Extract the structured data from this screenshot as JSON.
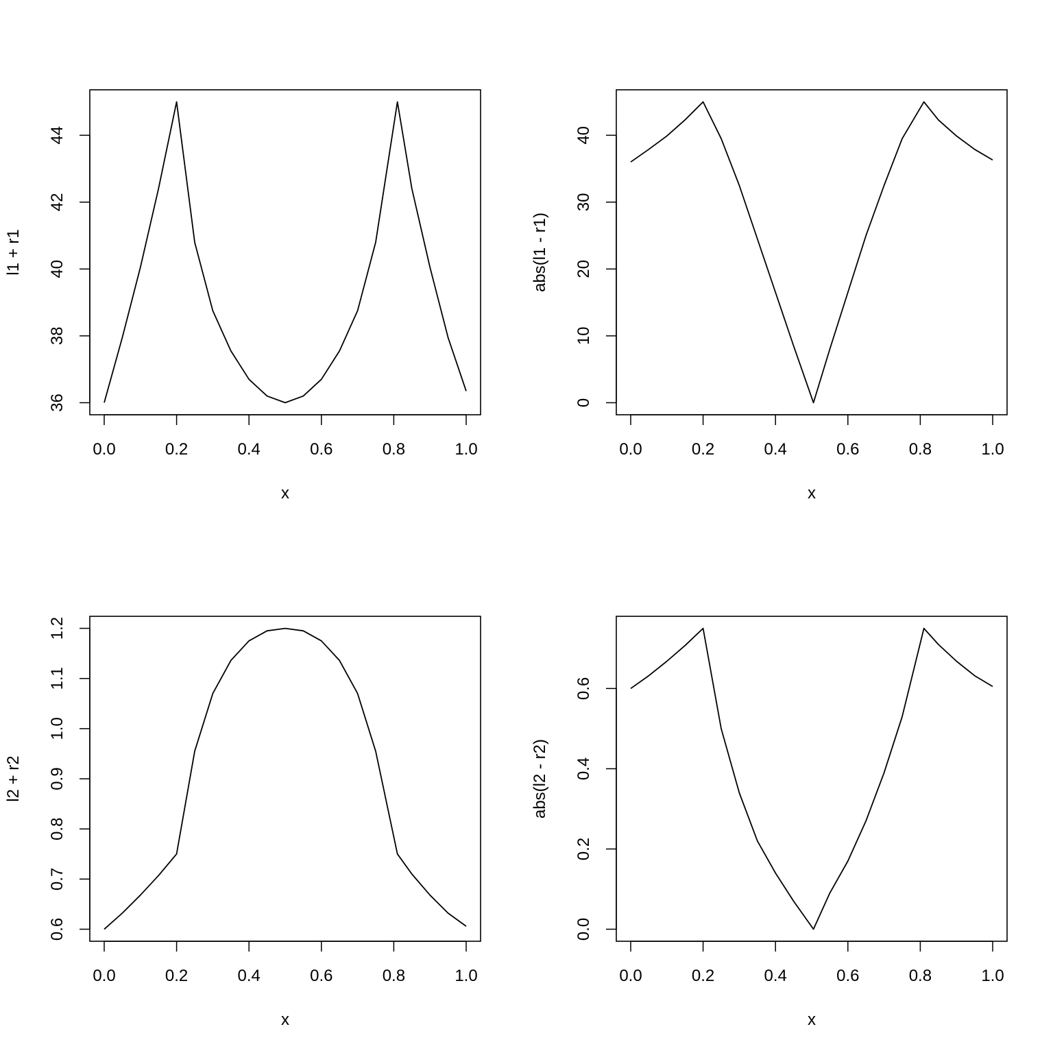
{
  "chart_data": [
    {
      "type": "line",
      "title": "",
      "xlabel": "x",
      "ylabel": "l1 + r1",
      "xlim": [
        0,
        1
      ],
      "ylim": [
        35.64,
        45.36
      ],
      "x_ticks": [
        0.0,
        0.2,
        0.4,
        0.6,
        0.8,
        1.0
      ],
      "x_tick_labels": [
        "0.0",
        "0.2",
        "0.4",
        "0.6",
        "0.8",
        "1.0"
      ],
      "y_ticks": [
        36,
        38,
        40,
        42,
        44
      ],
      "y_tick_labels": [
        "36",
        "38",
        "40",
        "42",
        "44"
      ],
      "grid": false,
      "series": [
        {
          "x": [
            0.0,
            0.05,
            0.1,
            0.15,
            0.2,
            0.25,
            0.3,
            0.35,
            0.4,
            0.45,
            0.5,
            0.55,
            0.6,
            0.65,
            0.7,
            0.75,
            0.81,
            0.85,
            0.9,
            0.95,
            1.0
          ],
          "y": [
            36.0,
            37.95,
            40.05,
            42.4,
            45.0,
            40.8,
            38.75,
            37.55,
            36.7,
            36.2,
            36.0,
            36.2,
            36.7,
            37.55,
            38.75,
            40.8,
            45.0,
            42.4,
            40.05,
            37.95,
            36.35
          ]
        }
      ]
    },
    {
      "type": "line",
      "title": "",
      "xlabel": "x",
      "ylabel": "abs(l1 - r1)",
      "xlim": [
        0,
        1
      ],
      "ylim": [
        -1.8,
        46.8
      ],
      "x_ticks": [
        0.0,
        0.2,
        0.4,
        0.6,
        0.8,
        1.0
      ],
      "x_tick_labels": [
        "0.0",
        "0.2",
        "0.4",
        "0.6",
        "0.8",
        "1.0"
      ],
      "y_ticks": [
        0,
        10,
        20,
        30,
        40
      ],
      "y_tick_labels": [
        "0",
        "10",
        "20",
        "30",
        "40"
      ],
      "grid": false,
      "series": [
        {
          "x": [
            0.0,
            0.05,
            0.1,
            0.15,
            0.2,
            0.25,
            0.3,
            0.35,
            0.4,
            0.45,
            0.505,
            0.55,
            0.6,
            0.65,
            0.7,
            0.75,
            0.81,
            0.85,
            0.9,
            0.95,
            1.0
          ],
          "y": [
            36.0,
            37.9,
            39.9,
            42.3,
            45.0,
            39.5,
            32.5,
            24.5,
            16.5,
            8.5,
            0.0,
            8.0,
            16.5,
            25.0,
            32.5,
            39.5,
            45.0,
            42.3,
            39.9,
            37.9,
            36.3
          ]
        }
      ]
    },
    {
      "type": "line",
      "title": "",
      "xlabel": "x",
      "ylabel": "l2 + r2",
      "xlim": [
        0,
        1
      ],
      "ylim": [
        0.576,
        1.224
      ],
      "x_ticks": [
        0.0,
        0.2,
        0.4,
        0.6,
        0.8,
        1.0
      ],
      "x_tick_labels": [
        "0.0",
        "0.2",
        "0.4",
        "0.6",
        "0.8",
        "1.0"
      ],
      "y_ticks": [
        0.6,
        0.7,
        0.8,
        0.9,
        1.0,
        1.1,
        1.2
      ],
      "y_tick_labels": [
        "0.6",
        "0.7",
        "0.8",
        "0.9",
        "1.0",
        "1.1",
        "1.2"
      ],
      "grid": false,
      "series": [
        {
          "x": [
            0.0,
            0.05,
            0.1,
            0.15,
            0.2,
            0.25,
            0.3,
            0.35,
            0.4,
            0.45,
            0.5,
            0.55,
            0.6,
            0.65,
            0.7,
            0.75,
            0.81,
            0.85,
            0.9,
            0.95,
            1.0
          ],
          "y": [
            0.6,
            0.632,
            0.668,
            0.707,
            0.75,
            0.955,
            1.07,
            1.136,
            1.175,
            1.195,
            1.2,
            1.195,
            1.175,
            1.136,
            1.07,
            0.955,
            0.75,
            0.71,
            0.668,
            0.632,
            0.606
          ]
        }
      ]
    },
    {
      "type": "line",
      "title": "",
      "xlabel": "x",
      "ylabel": "abs(l2 - r2)",
      "xlim": [
        0,
        1
      ],
      "ylim": [
        -0.03,
        0.78
      ],
      "x_ticks": [
        0.0,
        0.2,
        0.4,
        0.6,
        0.8,
        1.0
      ],
      "x_tick_labels": [
        "0.0",
        "0.2",
        "0.4",
        "0.6",
        "0.8",
        "1.0"
      ],
      "y_ticks": [
        0.0,
        0.2,
        0.4,
        0.6
      ],
      "y_tick_labels": [
        "0.0",
        "0.2",
        "0.4",
        "0.6"
      ],
      "grid": false,
      "series": [
        {
          "x": [
            0.0,
            0.05,
            0.1,
            0.15,
            0.2,
            0.25,
            0.3,
            0.35,
            0.4,
            0.45,
            0.505,
            0.55,
            0.6,
            0.65,
            0.7,
            0.75,
            0.81,
            0.85,
            0.9,
            0.95,
            1.0
          ],
          "y": [
            0.6,
            0.632,
            0.668,
            0.707,
            0.75,
            0.5,
            0.34,
            0.22,
            0.14,
            0.07,
            0.0,
            0.09,
            0.17,
            0.27,
            0.39,
            0.53,
            0.75,
            0.71,
            0.668,
            0.632,
            0.605
          ]
        }
      ]
    }
  ]
}
